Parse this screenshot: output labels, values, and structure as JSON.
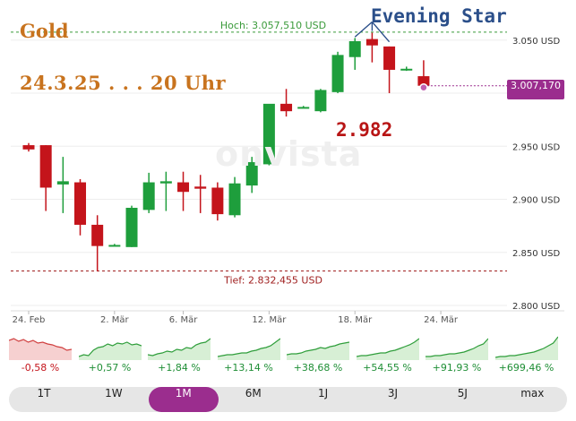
{
  "annotations": {
    "title": "Gold",
    "date": "24.3.25 . . . 20 Uhr",
    "pattern": "Evening Star",
    "price_callout": "2.982",
    "watermark": "onvista"
  },
  "current_price_badge": "3.007,170",
  "chart_data": {
    "type": "candlestick",
    "ylim": [
      2800,
      3065
    ],
    "yticks": [
      2800,
      2850,
      2900,
      2950,
      3000,
      3050
    ],
    "ytick_labels": [
      "2.800 USD",
      "2.850 USD",
      "2.900 USD",
      "2.950 USD",
      "3.000 USD",
      "3.050 USD"
    ],
    "xtick_labels": [
      "24. Feb",
      "2. Mär",
      "6. Mär",
      "12. Mär",
      "18. Mär",
      "24. Mär"
    ],
    "xtick_index": [
      0,
      5,
      9,
      14,
      19,
      24
    ],
    "high_line": {
      "value": 3057.51,
      "label": "Hoch: 3.057,510 USD"
    },
    "low_line": {
      "value": 2832.455,
      "label": "Tief: 2.832,455 USD"
    },
    "colors": {
      "up": "#1e9e3c",
      "down": "#c4141b",
      "high": "#3a9a3a",
      "low": "#a02020"
    },
    "candles": [
      {
        "o": 2951,
        "h": 2953,
        "l": 2945,
        "c": 2947
      },
      {
        "o": 2951,
        "h": 2951,
        "l": 2889,
        "c": 2911
      },
      {
        "o": 2914,
        "h": 2940,
        "l": 2887,
        "c": 2917
      },
      {
        "o": 2916,
        "h": 2919,
        "l": 2866,
        "c": 2876
      },
      {
        "o": 2876,
        "h": 2885,
        "l": 2832,
        "c": 2856
      },
      {
        "o": 2857,
        "h": 2858,
        "l": 2856,
        "c": 2857
      },
      {
        "o": 2855,
        "h": 2894,
        "l": 2855,
        "c": 2892
      },
      {
        "o": 2890,
        "h": 2925,
        "l": 2887,
        "c": 2916
      },
      {
        "o": 2915,
        "h": 2926,
        "l": 2889,
        "c": 2917
      },
      {
        "o": 2916,
        "h": 2926,
        "l": 2889,
        "c": 2907
      },
      {
        "o": 2912,
        "h": 2923,
        "l": 2887,
        "c": 2910
      },
      {
        "o": 2911,
        "h": 2916,
        "l": 2880,
        "c": 2886
      },
      {
        "o": 2885,
        "h": 2921,
        "l": 2883,
        "c": 2915
      },
      {
        "o": 2913,
        "h": 2940,
        "l": 2906,
        "c": 2935
      },
      {
        "o": 2933,
        "h": 2989,
        "l": 2932,
        "c": 2990
      },
      {
        "o": 2990,
        "h": 3004,
        "l": 2978,
        "c": 2983
      },
      {
        "o": 2987,
        "h": 2988,
        "l": 2986,
        "c": 2987
      },
      {
        "o": 2983,
        "h": 3004,
        "l": 2982,
        "c": 3003
      },
      {
        "o": 3001,
        "h": 3039,
        "l": 3000,
        "c": 3036
      },
      {
        "o": 3034,
        "h": 3052,
        "l": 3022,
        "c": 3049
      },
      {
        "o": 3051,
        "h": 3057,
        "l": 3029,
        "c": 3045
      },
      {
        "o": 3044,
        "h": 3044,
        "l": 3000,
        "c": 3022
      },
      {
        "o": 3023,
        "h": 3025,
        "l": 3021,
        "c": 3023
      },
      {
        "o": 3016,
        "h": 3031,
        "l": 3007,
        "c": 3007
      }
    ]
  },
  "performance": [
    {
      "label": "1T",
      "change": "-0,58 %",
      "trend": "down"
    },
    {
      "label": "1W",
      "change": "+0,57 %",
      "trend": "up"
    },
    {
      "label": "1M",
      "change": "+1,84 %",
      "trend": "up"
    },
    {
      "label": "6M",
      "change": "+13,14 %",
      "trend": "up"
    },
    {
      "label": "1J",
      "change": "+38,68 %",
      "trend": "up"
    },
    {
      "label": "3J",
      "change": "+54,55 %",
      "trend": "up"
    },
    {
      "label": "5J",
      "change": "+91,93 %",
      "trend": "up"
    },
    {
      "label": "max",
      "change": "+699,46 %",
      "trend": "up"
    }
  ],
  "tabs": [
    {
      "label": "1T",
      "active": false
    },
    {
      "label": "1W",
      "active": false
    },
    {
      "label": "1M",
      "active": true
    },
    {
      "label": "6M",
      "active": false
    },
    {
      "label": "1J",
      "active": false
    },
    {
      "label": "3J",
      "active": false
    },
    {
      "label": "5J",
      "active": false
    },
    {
      "label": "max",
      "active": false
    }
  ]
}
